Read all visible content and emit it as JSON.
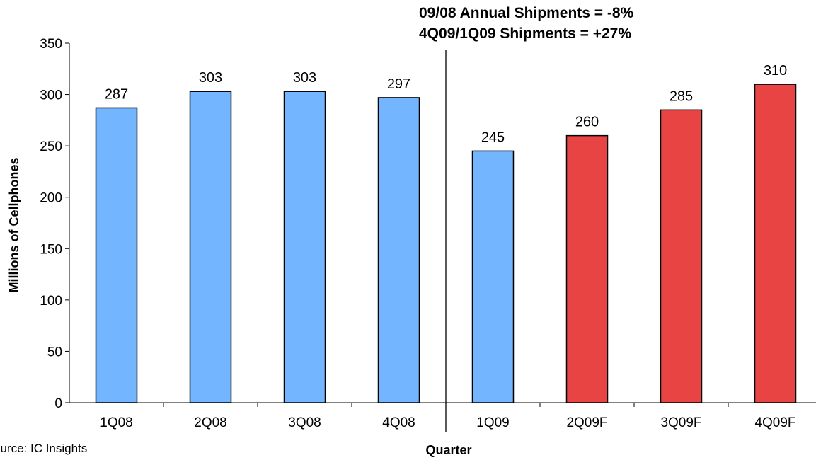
{
  "chart_data": {
    "type": "bar",
    "categories": [
      "1Q08",
      "2Q08",
      "3Q08",
      "4Q08",
      "1Q09",
      "2Q09F",
      "3Q09F",
      "4Q09F"
    ],
    "values": [
      287,
      303,
      303,
      297,
      245,
      260,
      285,
      310
    ],
    "bar_colors": [
      "#73b6ff",
      "#73b6ff",
      "#73b6ff",
      "#73b6ff",
      "#73b6ff",
      "#e84444",
      "#e84444",
      "#e84444"
    ],
    "xlabel": "Quarter",
    "ylabel": "Millions of Cellphones",
    "ylim": [
      0,
      350
    ],
    "yticks": [
      0,
      50,
      100,
      150,
      200,
      250,
      300,
      350
    ],
    "data_labels": true,
    "divider_after_category": "4Q08",
    "grid": false,
    "legend": "none",
    "annotations": [
      "09/08 Annual Shipments = -8%",
      "4Q09/1Q09 Shipments = +27%"
    ],
    "source": "ource:  IC Insights"
  }
}
